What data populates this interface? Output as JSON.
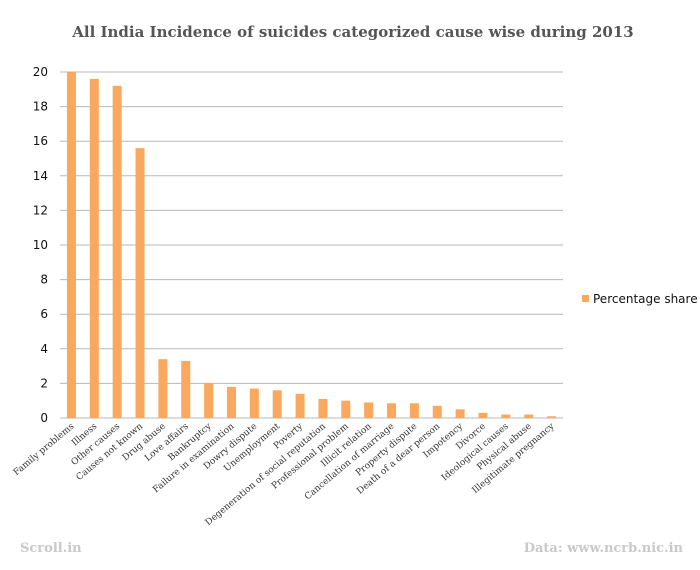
{
  "chart_data": {
    "type": "bar",
    "title": "All India Incidence of suicides categorized cause wise during 2013",
    "xlabel": "",
    "ylabel": "",
    "ylim": [
      0,
      20
    ],
    "yticks": [
      0,
      2,
      4,
      6,
      8,
      10,
      12,
      14,
      16,
      18,
      20
    ],
    "grid": true,
    "legend_position": "right",
    "categories": [
      "Family problems",
      "Illness",
      "Other causes",
      "Causes not known",
      "Drug abuse",
      "Love affairs",
      "Bankruptcy",
      "Failure in examination",
      "Dowry dispute",
      "Unemployment",
      "Poverty",
      "Degeneration of social reputation",
      "Professional problem",
      "Illicit relation",
      "Cancellation of marriage",
      "Property dispute",
      "Death of a dear person",
      "Impotency",
      "Divorce",
      "Ideological causes",
      "Physical abuse",
      "Illegitimate pregnancy"
    ],
    "series": [
      {
        "name": "Percentage share",
        "color": "#f9a85d",
        "values": [
          20.0,
          19.6,
          19.2,
          15.6,
          3.4,
          3.3,
          2.0,
          1.8,
          1.7,
          1.6,
          1.4,
          1.1,
          1.0,
          0.9,
          0.85,
          0.85,
          0.7,
          0.5,
          0.3,
          0.2,
          0.2,
          0.1
        ]
      }
    ]
  },
  "footer": {
    "left": "Scroll.in",
    "right": "Data: www.ncrb.nic.in"
  }
}
